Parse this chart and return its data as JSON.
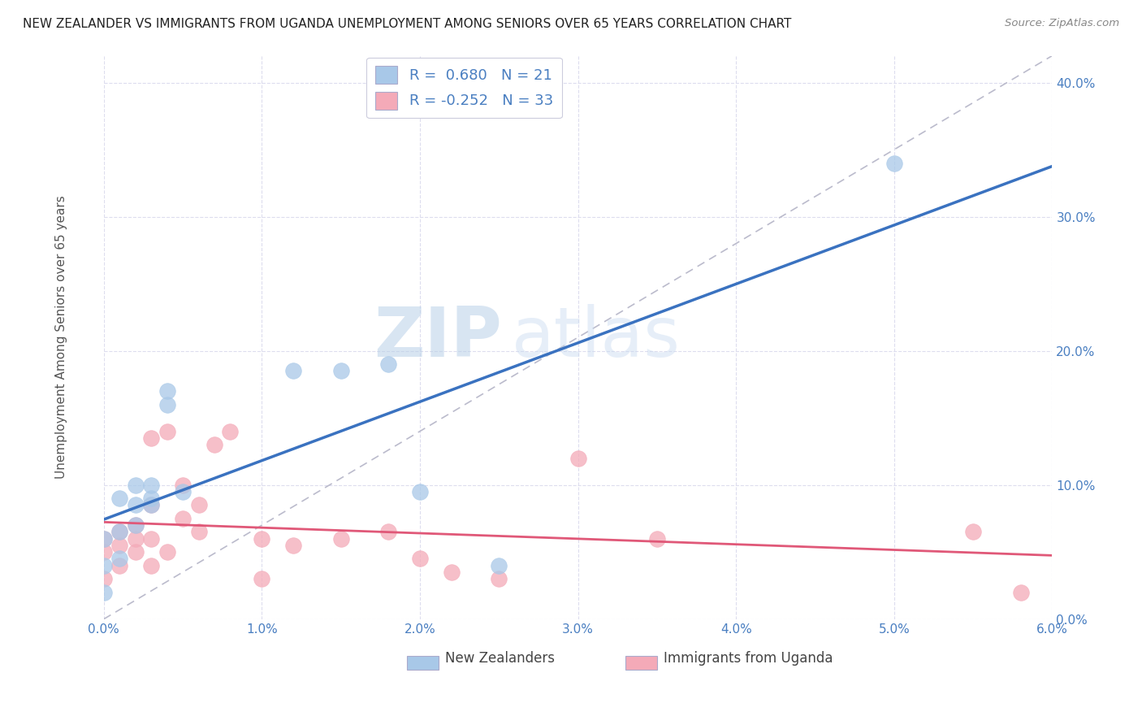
{
  "title": "NEW ZEALANDER VS IMMIGRANTS FROM UGANDA UNEMPLOYMENT AMONG SENIORS OVER 65 YEARS CORRELATION CHART",
  "source": "Source: ZipAtlas.com",
  "ylabel": "Unemployment Among Seniors over 65 years",
  "xlim": [
    0.0,
    0.06
  ],
  "ylim": [
    0.0,
    0.42
  ],
  "xticks": [
    0.0,
    0.01,
    0.02,
    0.03,
    0.04,
    0.05,
    0.06
  ],
  "yticks": [
    0.0,
    0.1,
    0.2,
    0.3,
    0.4
  ],
  "nz_color": "#a8c8e8",
  "ug_color": "#f4aab8",
  "nz_line_color": "#3a72c0",
  "ug_line_color": "#e05878",
  "ref_line_color": "#bbbbcc",
  "nz_R": 0.68,
  "nz_N": 21,
  "ug_R": -0.252,
  "ug_N": 33,
  "watermark_zip": "ZIP",
  "watermark_atlas": "atlas",
  "nz_scatter_x": [
    0.0,
    0.0,
    0.0,
    0.001,
    0.001,
    0.001,
    0.002,
    0.002,
    0.002,
    0.003,
    0.003,
    0.003,
    0.004,
    0.004,
    0.005,
    0.012,
    0.015,
    0.018,
    0.02,
    0.025,
    0.05
  ],
  "nz_scatter_y": [
    0.02,
    0.04,
    0.06,
    0.045,
    0.065,
    0.09,
    0.07,
    0.085,
    0.1,
    0.09,
    0.1,
    0.085,
    0.16,
    0.17,
    0.095,
    0.185,
    0.185,
    0.19,
    0.095,
    0.04,
    0.34
  ],
  "ug_scatter_x": [
    0.0,
    0.0,
    0.0,
    0.001,
    0.001,
    0.001,
    0.002,
    0.002,
    0.002,
    0.003,
    0.003,
    0.003,
    0.003,
    0.004,
    0.004,
    0.005,
    0.005,
    0.006,
    0.006,
    0.007,
    0.008,
    0.01,
    0.01,
    0.012,
    0.015,
    0.018,
    0.02,
    0.022,
    0.025,
    0.03,
    0.035,
    0.055,
    0.058
  ],
  "ug_scatter_y": [
    0.03,
    0.05,
    0.06,
    0.04,
    0.055,
    0.065,
    0.05,
    0.06,
    0.07,
    0.04,
    0.06,
    0.085,
    0.135,
    0.05,
    0.14,
    0.075,
    0.1,
    0.065,
    0.085,
    0.13,
    0.14,
    0.03,
    0.06,
    0.055,
    0.06,
    0.065,
    0.045,
    0.035,
    0.03,
    0.12,
    0.06,
    0.065,
    0.02
  ],
  "ref_line_x": [
    0.0,
    0.06
  ],
  "ref_line_y": [
    0.0,
    0.42
  ],
  "tick_color": "#4a7fc1",
  "grid_color": "#ddddee",
  "legend_label_color": "#4a7fc1"
}
